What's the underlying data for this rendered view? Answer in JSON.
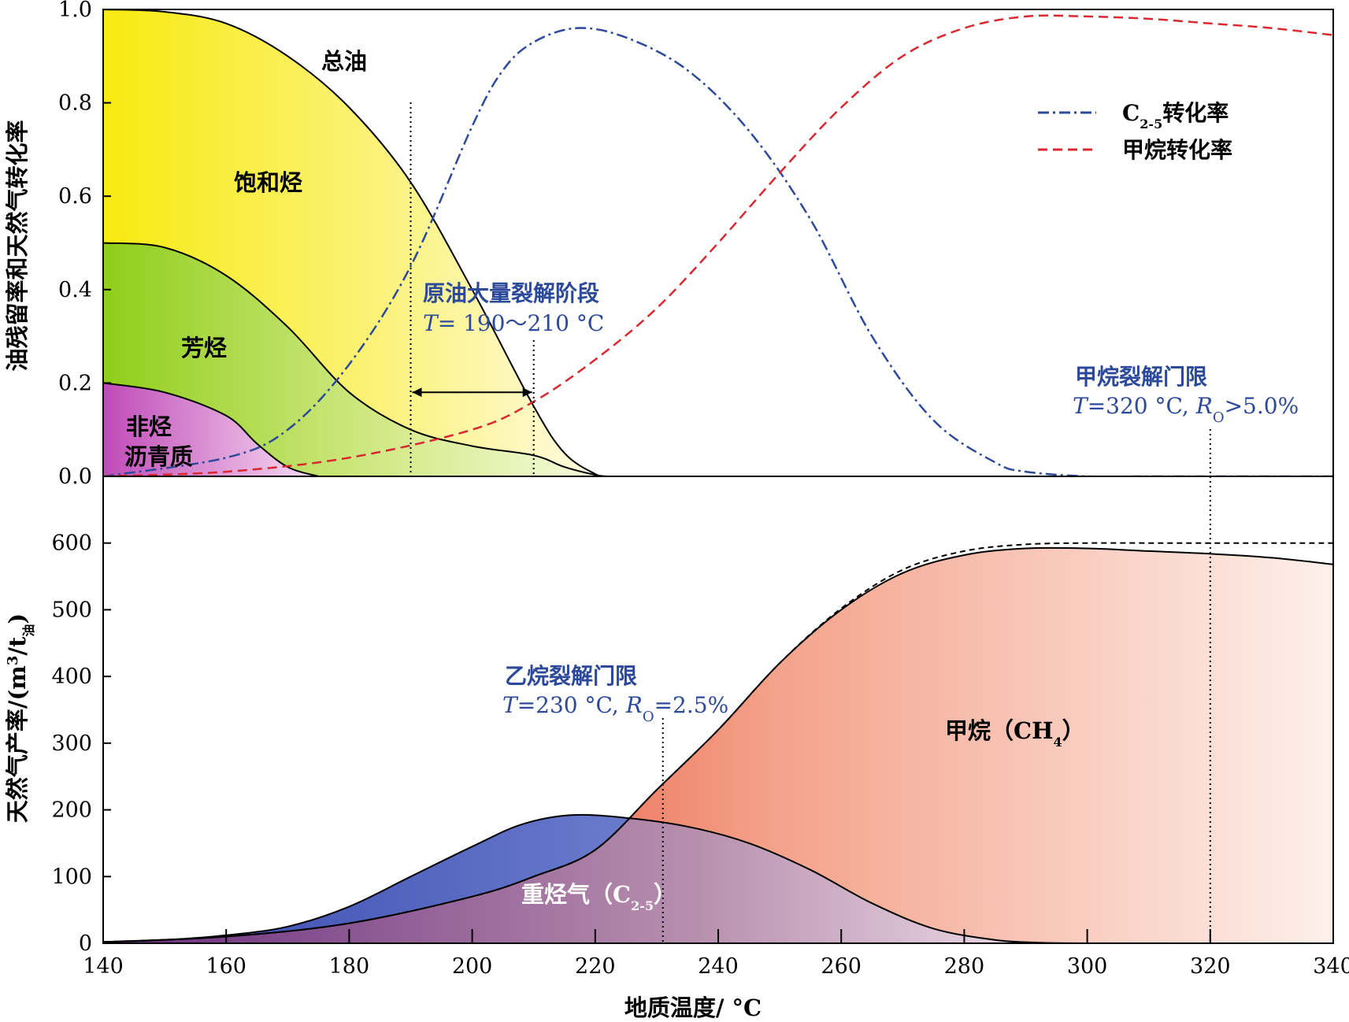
{
  "chart_data": [
    {
      "type": "area",
      "panel": "top",
      "ylabel": "油残留率和天然气转化率",
      "ylim": [
        0,
        1.0
      ],
      "xlim": [
        140,
        340
      ],
      "y_ticks": [
        "0.0",
        "0.2",
        "0.4",
        "0.6",
        "0.8",
        "1.0"
      ],
      "grid": false,
      "legend_position": "top-right",
      "stacked_areas": [
        {
          "name": "总油",
          "color": "#f7ec3a",
          "x": [
            140,
            150,
            160,
            170,
            180,
            190,
            200,
            210,
            215,
            220,
            222
          ],
          "values": [
            1.0,
            0.995,
            0.97,
            0.9,
            0.79,
            0.63,
            0.4,
            0.15,
            0.05,
            0.005,
            0.0
          ]
        },
        {
          "name": "饱和烃",
          "color": "#f7ec3a",
          "x": [
            140,
            150,
            160,
            170,
            180,
            190,
            200,
            210,
            215,
            220,
            222
          ],
          "values": [
            0.5,
            0.49,
            0.43,
            0.32,
            0.18,
            0.1,
            0.065,
            0.045,
            0.02,
            0.003,
            0.0
          ]
        },
        {
          "name": "非烃 沥青质",
          "color": "#c556b8",
          "x": [
            140,
            150,
            160,
            165,
            170,
            175
          ],
          "values": [
            0.2,
            0.18,
            0.13,
            0.07,
            0.02,
            0.0
          ]
        }
      ],
      "region_labels": {
        "total_oil": "总油",
        "saturates": "饱和烃",
        "aromatics": "芳烃",
        "resins_line1": "非烃",
        "resins_line2": "沥青质"
      },
      "series": [
        {
          "name": "C2-5转化率",
          "style": "dash-dot",
          "color": "#2d4a9a",
          "x": [
            140,
            160,
            170,
            180,
            190,
            200,
            205,
            210,
            217,
            225,
            235,
            245,
            255,
            265,
            275,
            285,
            290,
            300,
            310,
            340
          ],
          "values": [
            0.0,
            0.04,
            0.1,
            0.24,
            0.45,
            0.75,
            0.87,
            0.93,
            0.96,
            0.94,
            0.87,
            0.74,
            0.55,
            0.3,
            0.12,
            0.03,
            0.01,
            0.0,
            0.0,
            0.0
          ]
        },
        {
          "name": "甲烷转化率",
          "style": "dashed",
          "color": "#d9282f",
          "x": [
            140,
            160,
            180,
            200,
            210,
            220,
            230,
            240,
            250,
            260,
            270,
            280,
            290,
            300,
            310,
            320,
            330,
            340
          ],
          "values": [
            0.0,
            0.01,
            0.04,
            0.1,
            0.16,
            0.25,
            0.36,
            0.5,
            0.65,
            0.79,
            0.9,
            0.96,
            0.985,
            0.985,
            0.98,
            0.97,
            0.96,
            0.945
          ]
        }
      ],
      "legend": [
        {
          "prefix": "C",
          "sub": "2-5",
          "suffix": "转化率"
        },
        {
          "prefix": "",
          "sub": "",
          "suffix": "甲烷转化率"
        }
      ],
      "annotations": {
        "oil_cracking_title": "原油大量裂解阶段",
        "oil_cracking_T": "T",
        "oil_cracking_range": "= 190～210 °C",
        "oil_cracking_x": [
          190,
          210
        ],
        "methane_limit_title": "甲烷裂解门限",
        "methane_limit_T": "T",
        "methane_limit_val": "=320 °C, ",
        "methane_limit_R": "R",
        "methane_limit_Rsub": "O",
        "methane_limit_Rval": ">5.0%",
        "methane_limit_x": 320
      }
    },
    {
      "type": "area",
      "panel": "bottom",
      "ylabel_main": "天然气产率/(m",
      "ylabel_sup": "3",
      "ylabel_mid": "/t",
      "ylabel_sub": "油",
      "ylabel_end": ")",
      "xlabel": "地质温度/ °C",
      "ylim": [
        0,
        700
      ],
      "xlim": [
        140,
        340
      ],
      "x_ticks": [
        "140",
        "160",
        "180",
        "200",
        "220",
        "240",
        "260",
        "280",
        "300",
        "320",
        "340"
      ],
      "y_ticks": [
        "0",
        "100",
        "200",
        "300",
        "400",
        "500",
        "600"
      ],
      "grid": false,
      "series": [
        {
          "name": "重烃气（C2-5）",
          "color": "#4a5cc0",
          "x": [
            140,
            150,
            160,
            170,
            180,
            190,
            200,
            208,
            216,
            225,
            235,
            245,
            255,
            265,
            275,
            285,
            292,
            300
          ],
          "values": [
            2,
            5,
            12,
            25,
            55,
            100,
            145,
            178,
            192,
            188,
            175,
            150,
            110,
            60,
            22,
            5,
            1,
            0
          ]
        },
        {
          "name": "甲烷（CH4）",
          "color": "#f0705a",
          "x": [
            140,
            160,
            180,
            200,
            210,
            220,
            230,
            240,
            250,
            260,
            270,
            280,
            290,
            300,
            310,
            320,
            330,
            340
          ],
          "values": [
            2,
            10,
            30,
            70,
            100,
            140,
            230,
            320,
            420,
            500,
            555,
            582,
            592,
            592,
            588,
            584,
            578,
            568
          ]
        },
        {
          "name": "total",
          "style": "dashed",
          "color": "#000000",
          "x": [
            140,
            160,
            180,
            200,
            210,
            220,
            230,
            240,
            250,
            260,
            270,
            280,
            290,
            300,
            310,
            320,
            330,
            340
          ],
          "values": [
            2,
            10,
            30,
            70,
            100,
            140,
            230,
            320,
            420,
            502,
            560,
            588,
            598,
            600,
            600,
            600,
            600,
            600
          ]
        }
      ],
      "region_labels": {
        "heavy_main": "重烃气（C",
        "heavy_sub": "2-5",
        "heavy_end": "）",
        "methane_main": "甲烷（CH",
        "methane_sub": "4",
        "methane_end": "）"
      },
      "annotations": {
        "ethane_limit_title": "乙烷裂解门限",
        "ethane_limit_T": "T",
        "ethane_limit_val": "=230 °C, ",
        "ethane_limit_R": "R",
        "ethane_limit_Rsub": "O",
        "ethane_limit_Rval": "=2.5%",
        "ethane_limit_x": 231,
        "methane_limit_x": 320
      }
    }
  ]
}
